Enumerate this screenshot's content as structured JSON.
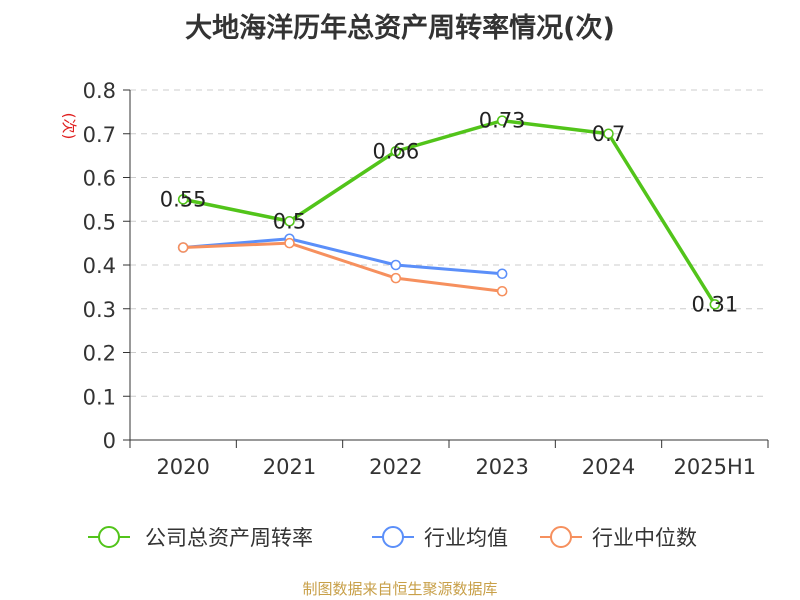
{
  "title": "大地海洋历年总资产周转率情况(次)",
  "footer": "制图数据来自恒生聚源数据库",
  "chart_data": {
    "type": "line",
    "title": "大地海洋历年总资产周转率情况(次)",
    "ylabel": "(次)",
    "categories": [
      "2020",
      "2021",
      "2022",
      "2023",
      "2024",
      "2025H1"
    ],
    "ylim": [
      0,
      0.8
    ],
    "yticks": [
      "0",
      "0.1",
      "0.2",
      "0.3",
      "0.4",
      "0.5",
      "0.6",
      "0.7",
      "0.8"
    ],
    "grid": true,
    "legend_position": "bottom",
    "series": [
      {
        "name": "公司总资产周转率",
        "color": "#52c41a",
        "values": [
          0.55,
          0.5,
          0.66,
          0.73,
          0.7,
          0.31
        ],
        "data_labels": [
          "0.55",
          "0.5",
          "0.66",
          "0.73",
          "0.7",
          "0.31"
        ]
      },
      {
        "name": "行业均值",
        "color": "#5b8ff9",
        "values": [
          0.44,
          0.46,
          0.4,
          0.38,
          null,
          null
        ]
      },
      {
        "name": "行业中位数",
        "color": "#f6905e",
        "values": [
          0.44,
          0.45,
          0.37,
          0.34,
          null,
          null
        ]
      }
    ]
  }
}
